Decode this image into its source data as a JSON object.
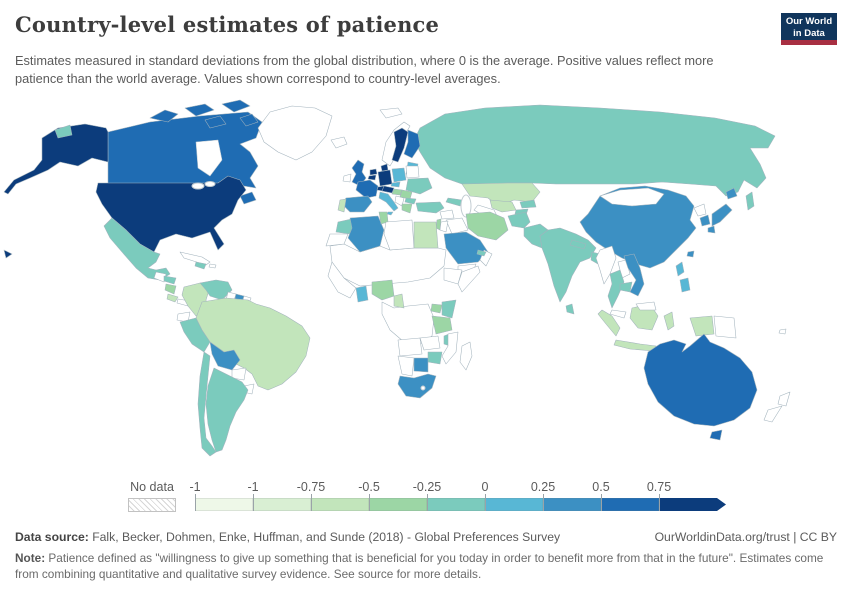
{
  "header": {
    "title": "Country-level estimates of patience",
    "subtitle": "Estimates measured in standard deviations from the global distribution, where 0 is the average. Positive values reflect more patience than the world average. Values shown correspond to country-level averages.",
    "logo": {
      "line1": "Our World",
      "line2": "in Data",
      "navy": "#10355c",
      "red": "#a82f42"
    }
  },
  "legend": {
    "no_data_label": "No data",
    "tick_labels": [
      "-1",
      "-1",
      "-0.75",
      "-0.5",
      "-0.25",
      "0",
      "0.25",
      "0.5",
      "0.75"
    ],
    "bin_colors": [
      "#eef8e8",
      "#d9efd3",
      "#c2e5bb",
      "#9cd6a5",
      "#7bcbbd",
      "#58b7d5",
      "#3c90c3",
      "#1f6cb3",
      "#0c3c7c"
    ],
    "no_data_hatch_color": "#d6d6d6"
  },
  "footer": {
    "source_label": "Data source:",
    "source_text": " Falk, Becker, Dohmen, Enke, Huffman, and Sunde (2018) - Global Preferences Survey",
    "rights": "OurWorldinData.org/trust | CC BY",
    "note_label": "Note:",
    "note_text": " Patience defined as \"willingness to give up something that is beneficial for you today in order to benefit more from that in the future\". Estimates come from combining quantitative and qualitative survey evidence. See source for more details."
  },
  "chart_data": {
    "type": "choropleth_map",
    "title": "Country-level estimates of patience",
    "unit": "standard deviations from the global distribution (0 = world average)",
    "legend_bin_edges": [
      "-1",
      "-1",
      "-0.75",
      "-0.5",
      "-0.25",
      "0",
      "0.25",
      "0.5",
      "0.75",
      ">0.75"
    ],
    "bin_ranges": [
      "below -1",
      "-1 to -0.75",
      "-0.75 to -0.5",
      "-0.5 to -0.25",
      "-0.25 to 0",
      "0 to 0.25",
      "0.25 to 0.5",
      "0.5 to 0.75",
      "above 0.75"
    ],
    "no_data_style": "diagonal gray hatching",
    "countries": [
      {
        "id": "usa",
        "name": "United States",
        "bin": 8
      },
      {
        "id": "canada",
        "name": "Canada",
        "bin": 7
      },
      {
        "id": "greenland",
        "name": "Greenland",
        "bin": "no-data"
      },
      {
        "id": "mexico",
        "name": "Mexico",
        "bin": 4
      },
      {
        "id": "guatemala",
        "name": "Guatemala",
        "bin": "none"
      },
      {
        "id": "honduras",
        "name": "Honduras",
        "bin": 4
      },
      {
        "id": "nicaragua",
        "name": "Nicaragua",
        "bin": 3
      },
      {
        "id": "costa-rica",
        "name": "Costa Rica",
        "bin": 2
      },
      {
        "id": "panama",
        "name": "Panama",
        "bin": "none"
      },
      {
        "id": "cuba",
        "name": "Cuba",
        "bin": "no-data"
      },
      {
        "id": "haiti",
        "name": "Haiti",
        "bin": 4
      },
      {
        "id": "puerto-rico",
        "name": "Puerto Rico",
        "bin": "no-data"
      },
      {
        "id": "colombia",
        "name": "Colombia",
        "bin": 2
      },
      {
        "id": "venezuela",
        "name": "Venezuela",
        "bin": 4
      },
      {
        "id": "guyana",
        "name": "Guyana",
        "bin": "no-data"
      },
      {
        "id": "suriname",
        "name": "Suriname",
        "bin": 6
      },
      {
        "id": "french-guiana",
        "name": "French Guiana",
        "bin": "no-data"
      },
      {
        "id": "ecuador",
        "name": "Ecuador",
        "bin": "no-data"
      },
      {
        "id": "peru",
        "name": "Peru",
        "bin": 4
      },
      {
        "id": "brazil",
        "name": "Brazil",
        "bin": 2
      },
      {
        "id": "bolivia",
        "name": "Bolivia",
        "bin": 6
      },
      {
        "id": "paraguay",
        "name": "Paraguay",
        "bin": "no-data"
      },
      {
        "id": "uruguay",
        "name": "Uruguay",
        "bin": "no-data"
      },
      {
        "id": "argentina",
        "name": "Argentina",
        "bin": 4
      },
      {
        "id": "chile",
        "name": "Chile",
        "bin": 4
      },
      {
        "id": "iceland",
        "name": "Iceland",
        "bin": "no-data"
      },
      {
        "id": "svalbard",
        "name": "Svalbard",
        "bin": "no-data"
      },
      {
        "id": "ireland",
        "name": "Ireland",
        "bin": "no-data"
      },
      {
        "id": "uk",
        "name": "United Kingdom",
        "bin": 7
      },
      {
        "id": "norway",
        "name": "Norway",
        "bin": "none"
      },
      {
        "id": "sweden",
        "name": "Sweden",
        "bin": 8
      },
      {
        "id": "finland",
        "name": "Finland",
        "bin": 7
      },
      {
        "id": "denmark",
        "name": "Denmark",
        "bin": 8
      },
      {
        "id": "baltics",
        "name": "Baltic states",
        "bin": 5
      },
      {
        "id": "poland",
        "name": "Poland",
        "bin": 5
      },
      {
        "id": "belarus",
        "name": "Belarus",
        "bin": "no-data"
      },
      {
        "id": "germany",
        "name": "Germany",
        "bin": 8
      },
      {
        "id": "netherlands",
        "name": "Netherlands",
        "bin": 8
      },
      {
        "id": "belgium",
        "name": "Belgium",
        "bin": 8
      },
      {
        "id": "france",
        "name": "France",
        "bin": 7
      },
      {
        "id": "switzerland",
        "name": "Switzerland",
        "bin": 8
      },
      {
        "id": "austria",
        "name": "Austria",
        "bin": 8
      },
      {
        "id": "czechia",
        "name": "Czechia",
        "bin": 5
      },
      {
        "id": "italy",
        "name": "Italy",
        "bin": 5
      },
      {
        "id": "spain",
        "name": "Spain",
        "bin": 6
      },
      {
        "id": "portugal",
        "name": "Portugal",
        "bin": 2
      },
      {
        "id": "hungary",
        "name": "Hungary",
        "bin": 3
      },
      {
        "id": "romania",
        "name": "Romania",
        "bin": 3
      },
      {
        "id": "bulgaria",
        "name": "Bulgaria",
        "bin": 4
      },
      {
        "id": "greece",
        "name": "Greece",
        "bin": 3
      },
      {
        "id": "west-balkans",
        "name": "Western Balkans",
        "bin": "no-data"
      },
      {
        "id": "ukraine",
        "name": "Ukraine",
        "bin": 4
      },
      {
        "id": "turkey",
        "name": "Turkey",
        "bin": 4
      },
      {
        "id": "russia",
        "name": "Russia",
        "bin": 4
      },
      {
        "id": "kazakhstan",
        "name": "Kazakhstan",
        "bin": 2
      },
      {
        "id": "uzbekistan",
        "name": "Uzbekistan",
        "bin": 2
      },
      {
        "id": "turkmenistan",
        "name": "Turkmenistan",
        "bin": "none"
      },
      {
        "id": "kyrgyzstan",
        "name": "Kyrgyzstan",
        "bin": 4
      },
      {
        "id": "tajikistan",
        "name": "Tajikistan",
        "bin": 4
      },
      {
        "id": "georgia",
        "name": "Georgia",
        "bin": 4
      },
      {
        "id": "syria",
        "name": "Syria",
        "bin": "no-data"
      },
      {
        "id": "iraq",
        "name": "Iraq",
        "bin": "none"
      },
      {
        "id": "iran",
        "name": "Iran",
        "bin": 3
      },
      {
        "id": "israel",
        "name": "Israel",
        "bin": 3
      },
      {
        "id": "jordan",
        "name": "Jordan",
        "bin": "no-data"
      },
      {
        "id": "saudi-arabia",
        "name": "Saudi Arabia",
        "bin": 6
      },
      {
        "id": "yemen",
        "name": "Yemen",
        "bin": "no-data"
      },
      {
        "id": "oman",
        "name": "Oman",
        "bin": "no-data"
      },
      {
        "id": "uae",
        "name": "United Arab Emirates",
        "bin": 4
      },
      {
        "id": "morocco",
        "name": "Morocco",
        "bin": 4
      },
      {
        "id": "western-sahara",
        "name": "Western Sahara",
        "bin": "no-data"
      },
      {
        "id": "algeria",
        "name": "Algeria",
        "bin": 6
      },
      {
        "id": "tunisia",
        "name": "Tunisia",
        "bin": 3
      },
      {
        "id": "libya",
        "name": "Libya",
        "bin": "no-data"
      },
      {
        "id": "egypt",
        "name": "Egypt",
        "bin": 2
      },
      {
        "id": "sahel",
        "name": "Mali / Niger / Chad / Sudan",
        "bin": "no-data"
      },
      {
        "id": "west-africa",
        "name": "Senegal / Guinea / Côte d'Ivoire",
        "bin": "no-data"
      },
      {
        "id": "ghana",
        "name": "Ghana",
        "bin": 5
      },
      {
        "id": "nigeria",
        "name": "Nigeria",
        "bin": 3
      },
      {
        "id": "cameroon",
        "name": "Cameroon",
        "bin": 2
      },
      {
        "id": "central-africa",
        "name": "DR Congo / Central Africa",
        "bin": "no-data"
      },
      {
        "id": "ethiopia",
        "name": "Ethiopia",
        "bin": "no-data"
      },
      {
        "id": "somalia",
        "name": "Somalia",
        "bin": "no-data"
      },
      {
        "id": "uganda",
        "name": "Uganda",
        "bin": 3
      },
      {
        "id": "kenya",
        "name": "Kenya",
        "bin": 4
      },
      {
        "id": "tanzania",
        "name": "Tanzania",
        "bin": 3
      },
      {
        "id": "malawi",
        "name": "Malawi",
        "bin": 4
      },
      {
        "id": "mozambique",
        "name": "Mozambique",
        "bin": "no-data"
      },
      {
        "id": "zambia",
        "name": "Zambia",
        "bin": "no-data"
      },
      {
        "id": "angola",
        "name": "Angola",
        "bin": "no-data"
      },
      {
        "id": "zimbabwe",
        "name": "Zimbabwe",
        "bin": 4
      },
      {
        "id": "botswana",
        "name": "Botswana",
        "bin": 6
      },
      {
        "id": "namibia",
        "name": "Namibia",
        "bin": "none"
      },
      {
        "id": "south-africa",
        "name": "South Africa",
        "bin": 6
      },
      {
        "id": "madagascar",
        "name": "Madagascar",
        "bin": "no-data"
      },
      {
        "id": "afghanistan",
        "name": "Afghanistan",
        "bin": 4
      },
      {
        "id": "pakistan",
        "name": "Pakistan",
        "bin": 4
      },
      {
        "id": "india",
        "name": "India",
        "bin": 4
      },
      {
        "id": "nepal",
        "name": "Nepal",
        "bin": 4
      },
      {
        "id": "bangladesh",
        "name": "Bangladesh",
        "bin": 4
      },
      {
        "id": "sri-lanka",
        "name": "Sri Lanka",
        "bin": 4
      },
      {
        "id": "myanmar",
        "name": "Myanmar",
        "bin": "no-data"
      },
      {
        "id": "thailand",
        "name": "Thailand",
        "bin": 4
      },
      {
        "id": "laos",
        "name": "Laos",
        "bin": "no-data"
      },
      {
        "id": "cambodia",
        "name": "Cambodia",
        "bin": 4
      },
      {
        "id": "vietnam",
        "name": "Vietnam",
        "bin": 6
      },
      {
        "id": "malaysia",
        "name": "Malaysia",
        "bin": "no-data"
      },
      {
        "id": "china",
        "name": "China",
        "bin": 6
      },
      {
        "id": "mongolia",
        "name": "Mongolia",
        "bin": "no-data"
      },
      {
        "id": "north-korea",
        "name": "North Korea",
        "bin": "no-data"
      },
      {
        "id": "south-korea",
        "name": "South Korea",
        "bin": 6
      },
      {
        "id": "japan",
        "name": "Japan",
        "bin": 6
      },
      {
        "id": "taiwan",
        "name": "Taiwan",
        "bin": 6
      },
      {
        "id": "philippines",
        "name": "Philippines",
        "bin": 5
      },
      {
        "id": "indonesia",
        "name": "Indonesia",
        "bin": 2
      },
      {
        "id": "papua-new-guinea",
        "name": "Papua New Guinea",
        "bin": "no-data"
      },
      {
        "id": "australia",
        "name": "Australia",
        "bin": 7
      },
      {
        "id": "new-zealand",
        "name": "New Zealand",
        "bin": "no-data"
      },
      {
        "id": "fiji",
        "name": "Fiji",
        "bin": "no-data"
      }
    ]
  }
}
